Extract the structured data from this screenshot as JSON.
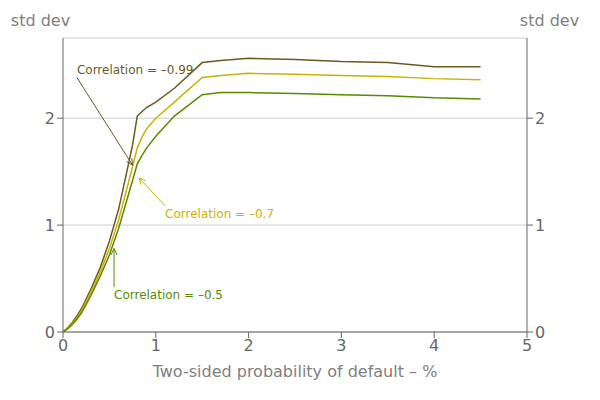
{
  "chart_data": {
    "type": "line",
    "xlabel": "Two-sided probability of default – %",
    "ylabel": "std dev",
    "y2label": "std dev",
    "xlim": [
      0,
      5
    ],
    "ylim": [
      0,
      2.75
    ],
    "y2lim": [
      0,
      2.75
    ],
    "xticks": [
      0,
      1,
      2,
      3,
      4,
      5
    ],
    "yticks": [
      0,
      1,
      2
    ],
    "y2ticks": [
      0,
      1,
      2
    ],
    "grid": true,
    "x": [
      0,
      0.05,
      0.1,
      0.15,
      0.2,
      0.3,
      0.4,
      0.5,
      0.6,
      0.7,
      0.75,
      0.8,
      0.85,
      0.9,
      1.0,
      1.2,
      1.5,
      1.7,
      2.0,
      2.5,
      3.0,
      3.5,
      4.0,
      4.5
    ],
    "series": [
      {
        "name": "Correlation = –0.99",
        "color": "#6b5a1e",
        "values": [
          0,
          0.04,
          0.09,
          0.15,
          0.22,
          0.4,
          0.6,
          0.85,
          1.15,
          1.55,
          1.75,
          2.02,
          2.06,
          2.1,
          2.15,
          2.28,
          2.52,
          2.54,
          2.56,
          2.55,
          2.53,
          2.52,
          2.48,
          2.48
        ]
      },
      {
        "name": "Correlation = –0.7",
        "color": "#c8b400",
        "values": [
          0,
          0.035,
          0.08,
          0.13,
          0.2,
          0.37,
          0.56,
          0.78,
          1.05,
          1.38,
          1.55,
          1.72,
          1.82,
          1.9,
          2.0,
          2.15,
          2.38,
          2.4,
          2.42,
          2.41,
          2.4,
          2.39,
          2.37,
          2.36
        ]
      },
      {
        "name": "Correlation = –0.5",
        "color": "#5a8a00",
        "values": [
          0,
          0.03,
          0.07,
          0.12,
          0.18,
          0.34,
          0.52,
          0.72,
          0.97,
          1.27,
          1.42,
          1.57,
          1.65,
          1.72,
          1.83,
          2.02,
          2.22,
          2.24,
          2.24,
          2.23,
          2.22,
          2.21,
          2.19,
          2.18
        ]
      }
    ],
    "annotations": [
      {
        "text": "Correlation = –0.99",
        "color": "#6b5a1e",
        "x": 0.75,
        "y": 1.56,
        "text_x": 0.15,
        "text_y": 2.38
      },
      {
        "text": "Correlation = –0.7",
        "color": "#c8b400",
        "x": 0.82,
        "y": 1.44,
        "text_x": 1.1,
        "text_y": 1.18
      },
      {
        "text": "Correlation = –0.5",
        "color": "#5a8a00",
        "x": 0.55,
        "y": 0.78,
        "text_x": 0.55,
        "text_y": 0.42
      }
    ]
  }
}
